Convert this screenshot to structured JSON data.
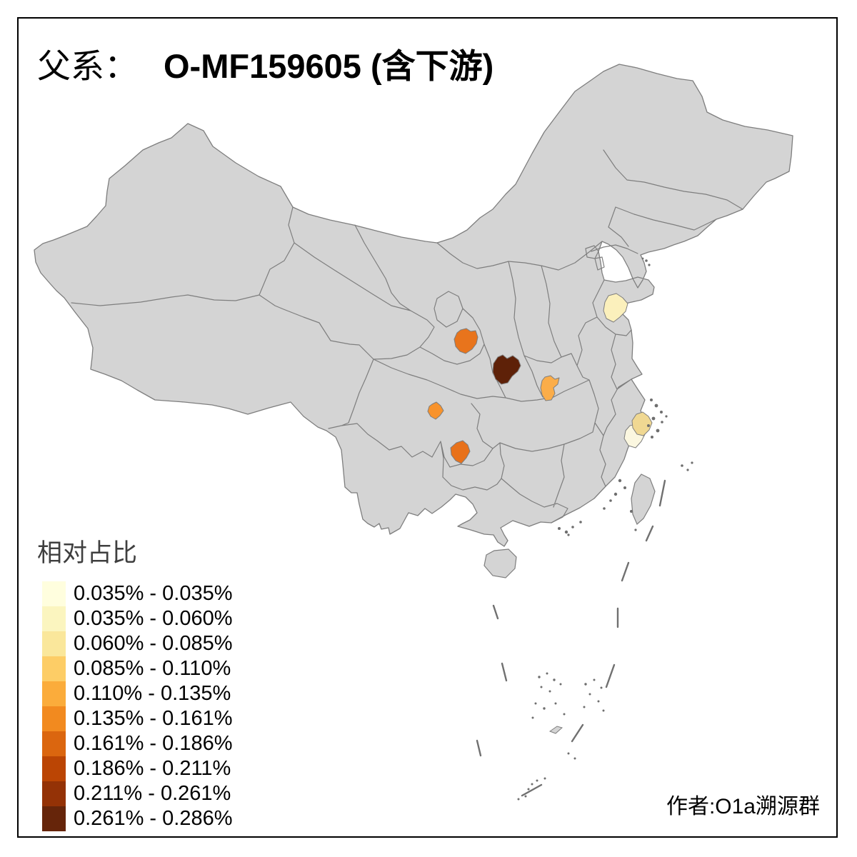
{
  "title": {
    "prefix": "父系：",
    "main": "O-MF159605 (含下游)"
  },
  "legend": {
    "title": "相对占比",
    "items": [
      {
        "label": "0.035% - 0.035%",
        "color": "#FFFEDE"
      },
      {
        "label": "0.035% - 0.060%",
        "color": "#FBF5BF"
      },
      {
        "label": "0.060% - 0.085%",
        "color": "#FAE79B"
      },
      {
        "label": "0.085% - 0.110%",
        "color": "#FDCD66"
      },
      {
        "label": "0.110% - 0.135%",
        "color": "#FBAC3B"
      },
      {
        "label": "0.135% - 0.161%",
        "color": "#F28A1F"
      },
      {
        "label": "0.161% - 0.186%",
        "color": "#DB660F"
      },
      {
        "label": "0.186% - 0.211%",
        "color": "#BB4504"
      },
      {
        "label": "0.211% - 0.261%",
        "color": "#943206"
      },
      {
        "label": "0.261% - 0.286%",
        "color": "#66250A"
      }
    ]
  },
  "credit": "作者:O1a溯源群",
  "map": {
    "land_color": "#D4D4D4",
    "border_color": "#7E7E7E",
    "sea_color": "#FFFFFF",
    "island_color": "#6E6E6E",
    "dash_line_color": "#707070",
    "highlighted_regions": [
      {
        "id": "south-gansu",
        "color": "#E8741C",
        "range": "0.161% - 0.186%"
      },
      {
        "id": "hanzhong-s-shaanxi",
        "color": "#5E2108",
        "range": "0.261% - 0.286%"
      },
      {
        "id": "xiangyang-nw-hubei",
        "color": "#FBAD49",
        "range": "0.110% - 0.135%"
      },
      {
        "id": "central-sichuan",
        "color": "#F8932C",
        "range": "0.135% - 0.161%"
      },
      {
        "id": "north-guizhou",
        "color": "#E8711A",
        "range": "0.161% - 0.186%"
      },
      {
        "id": "central-shandong",
        "color": "#FBF0BC",
        "range": "0.035% - 0.060%"
      },
      {
        "id": "taizhou-zhejiang",
        "color": "#F0D892",
        "range": "0.060% - 0.085%"
      },
      {
        "id": "wenzhou-zhejiang",
        "color": "#FBF7E0",
        "range": "0.035% - 0.035%"
      }
    ]
  }
}
